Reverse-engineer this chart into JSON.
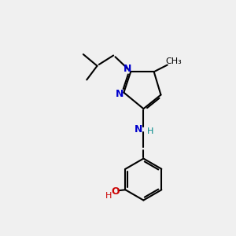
{
  "background_color": "#f0f0f0",
  "bond_color": "#000000",
  "nitrogen_color": "#0000cc",
  "oxygen_color": "#cc0000",
  "nh_n_color": "#0000cc",
  "nh_h_color": "#008888",
  "line_width": 1.5,
  "figsize": [
    3.0,
    3.0
  ],
  "dpi": 100,
  "xlim": [
    0,
    10
  ],
  "ylim": [
    0,
    10
  ]
}
